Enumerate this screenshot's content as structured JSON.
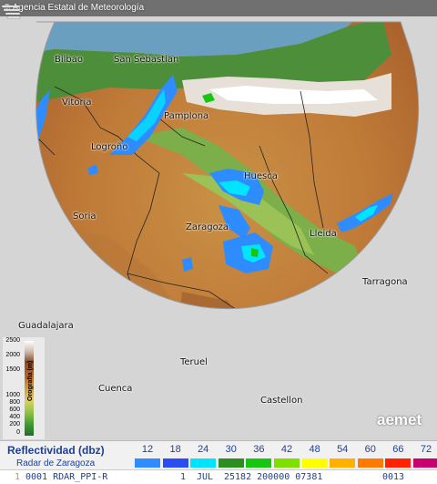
{
  "header": {
    "agency": "Agencia Estatal de Meteorología"
  },
  "map": {
    "cities": [
      {
        "id": "bilbao",
        "label": "Bilbao"
      },
      {
        "id": "san-sebastian",
        "label": "San Sebastian"
      },
      {
        "id": "vitoria",
        "label": "Vitoria"
      },
      {
        "id": "pamplona",
        "label": "Pamplona"
      },
      {
        "id": "logrono",
        "label": "Logroño"
      },
      {
        "id": "huesca",
        "label": "Huesca"
      },
      {
        "id": "soria",
        "label": "Soria"
      },
      {
        "id": "zaragoza",
        "label": "Zaragoza"
      },
      {
        "id": "lleida",
        "label": "Lleida"
      },
      {
        "id": "tarragona",
        "label": "Tarragona"
      },
      {
        "id": "guadalajara",
        "label": "Guadalajara"
      },
      {
        "id": "teruel",
        "label": "Teruel"
      },
      {
        "id": "cuenca",
        "label": "Cuenca"
      },
      {
        "id": "castellon",
        "label": "Castellon"
      }
    ]
  },
  "orography": {
    "title": "Orografía (m)",
    "ticks": [
      "2500",
      "2000",
      "1500",
      "1000",
      "800",
      "600",
      "400",
      "200",
      "0"
    ]
  },
  "brand": {
    "name": "aemet"
  },
  "legend": {
    "title": "Reflectividad (dbz)",
    "subtitle": "Radar de Zaragoza",
    "values": [
      "12",
      "18",
      "24",
      "30",
      "36",
      "42",
      "48",
      "54",
      "60",
      "66",
      "72"
    ],
    "colors": [
      "#2f8cff",
      "#2c4df2",
      "#00e4ff",
      "#2c8d20",
      "#17c611",
      "#7fe000",
      "#ffff00",
      "#ffb000",
      "#ff7a00",
      "#ff2200",
      "#c80070"
    ]
  },
  "status": {
    "index": "1",
    "product": "0001 RDAR_PPI-R",
    "day": "1",
    "month": "JUL",
    "codes": "25182 200000 07381",
    "time": "0013"
  }
}
